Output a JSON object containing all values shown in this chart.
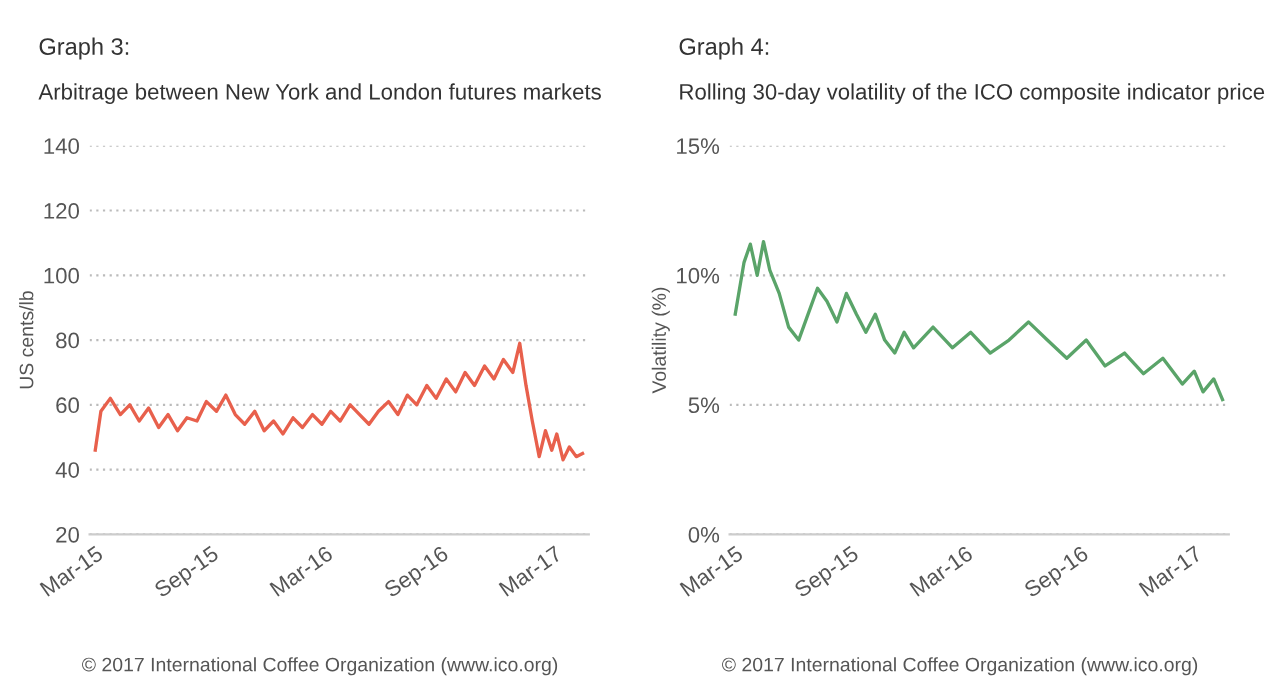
{
  "chart_data": [
    {
      "type": "line",
      "title": "Graph 3:",
      "subtitle": "Arbitrage between New York and London futures markets",
      "ylabel": "US cents/lb",
      "x": [
        "2015-03-01",
        "2015-03-10",
        "2015-03-25",
        "2015-04-10",
        "2015-04-25",
        "2015-05-10",
        "2015-05-25",
        "2015-06-10",
        "2015-06-25",
        "2015-07-10",
        "2015-07-25",
        "2015-08-10",
        "2015-08-25",
        "2015-09-10",
        "2015-09-25",
        "2015-10-10",
        "2015-10-25",
        "2015-11-10",
        "2015-11-25",
        "2015-12-10",
        "2015-12-25",
        "2016-01-10",
        "2016-01-25",
        "2016-02-10",
        "2016-02-25",
        "2016-03-10",
        "2016-03-25",
        "2016-04-10",
        "2016-04-25",
        "2016-05-10",
        "2016-05-25",
        "2016-06-10",
        "2016-06-25",
        "2016-07-10",
        "2016-07-25",
        "2016-08-10",
        "2016-08-25",
        "2016-09-10",
        "2016-09-25",
        "2016-10-10",
        "2016-10-25",
        "2016-11-10",
        "2016-11-25",
        "2016-12-10",
        "2016-12-25",
        "2017-01-05",
        "2017-01-15",
        "2017-01-25",
        "2017-02-05",
        "2017-02-15",
        "2017-02-25",
        "2017-03-05",
        "2017-03-15",
        "2017-03-25",
        "2017-04-05",
        "2017-04-15"
      ],
      "series": [
        {
          "color": "#e8604c",
          "values": [
            46,
            58,
            62,
            57,
            60,
            55,
            59,
            53,
            57,
            52,
            56,
            55,
            61,
            58,
            63,
            57,
            54,
            58,
            52,
            55,
            51,
            56,
            53,
            57,
            54,
            58,
            55,
            60,
            57,
            54,
            58,
            61,
            57,
            63,
            60,
            66,
            62,
            68,
            64,
            70,
            66,
            72,
            68,
            74,
            70,
            79,
            66,
            55,
            44,
            52,
            46,
            51,
            43,
            47,
            44,
            45
          ]
        }
      ],
      "xlim": [
        "2015-02-20",
        "2017-04-25"
      ],
      "xticks": [
        {
          "value": "2015-03-01",
          "label": "Mar-15"
        },
        {
          "value": "2015-09-01",
          "label": "Sep-15"
        },
        {
          "value": "2016-03-01",
          "label": "Mar-16"
        },
        {
          "value": "2016-09-01",
          "label": "Sep-16"
        },
        {
          "value": "2017-03-01",
          "label": "Mar-17"
        }
      ],
      "ylim": [
        20,
        140
      ],
      "yticks": [
        20,
        40,
        60,
        80,
        100,
        120,
        140
      ],
      "grid": "y",
      "annotations": [
        "© 2017 International Coffee Organization (www.ico.org)"
      ]
    },
    {
      "type": "line",
      "title": "Graph 4:",
      "subtitle": "Rolling 30-day volatility of the ICO composite indicator price",
      "ylabel": "Volatility (%)",
      "x": [
        "2015-03-01",
        "2015-03-15",
        "2015-03-25",
        "2015-04-05",
        "2015-04-15",
        "2015-04-25",
        "2015-05-10",
        "2015-05-25",
        "2015-06-10",
        "2015-06-25",
        "2015-07-10",
        "2015-07-25",
        "2015-08-10",
        "2015-08-25",
        "2015-09-10",
        "2015-09-25",
        "2015-10-10",
        "2015-10-25",
        "2015-11-10",
        "2015-11-25",
        "2015-12-10",
        "2016-01-10",
        "2016-02-10",
        "2016-03-10",
        "2016-04-10",
        "2016-05-10",
        "2016-06-10",
        "2016-07-10",
        "2016-08-10",
        "2016-09-10",
        "2016-10-10",
        "2016-11-10",
        "2016-12-10",
        "2017-01-10",
        "2017-02-10",
        "2017-03-01",
        "2017-03-15",
        "2017-04-01",
        "2017-04-15"
      ],
      "series": [
        {
          "color": "#5aa469",
          "values": [
            8.5,
            10.5,
            11.2,
            10.0,
            11.3,
            10.2,
            9.3,
            8.0,
            7.5,
            8.5,
            9.5,
            9.0,
            8.2,
            9.3,
            8.5,
            7.8,
            8.5,
            7.5,
            7.0,
            7.8,
            7.2,
            8.0,
            7.2,
            7.8,
            7.0,
            7.5,
            8.2,
            7.5,
            6.8,
            7.5,
            6.5,
            7.0,
            6.2,
            6.8,
            5.8,
            6.3,
            5.5,
            6.0,
            5.2
          ]
        }
      ],
      "xlim": [
        "2015-02-20",
        "2017-04-25"
      ],
      "xticks": [
        {
          "value": "2015-03-01",
          "label": "Mar-15"
        },
        {
          "value": "2015-09-01",
          "label": "Sep-15"
        },
        {
          "value": "2016-03-01",
          "label": "Mar-16"
        },
        {
          "value": "2016-09-01",
          "label": "Sep-16"
        },
        {
          "value": "2017-03-01",
          "label": "Mar-17"
        }
      ],
      "ylim": [
        0,
        15
      ],
      "yticks": [
        {
          "value": 0,
          "label": "0%"
        },
        {
          "value": 5,
          "label": "5%"
        },
        {
          "value": 10,
          "label": "10%"
        },
        {
          "value": 15,
          "label": "15%"
        }
      ],
      "grid": "y",
      "annotations": [
        "© 2017 International Coffee Organization (www.ico.org)"
      ]
    }
  ]
}
